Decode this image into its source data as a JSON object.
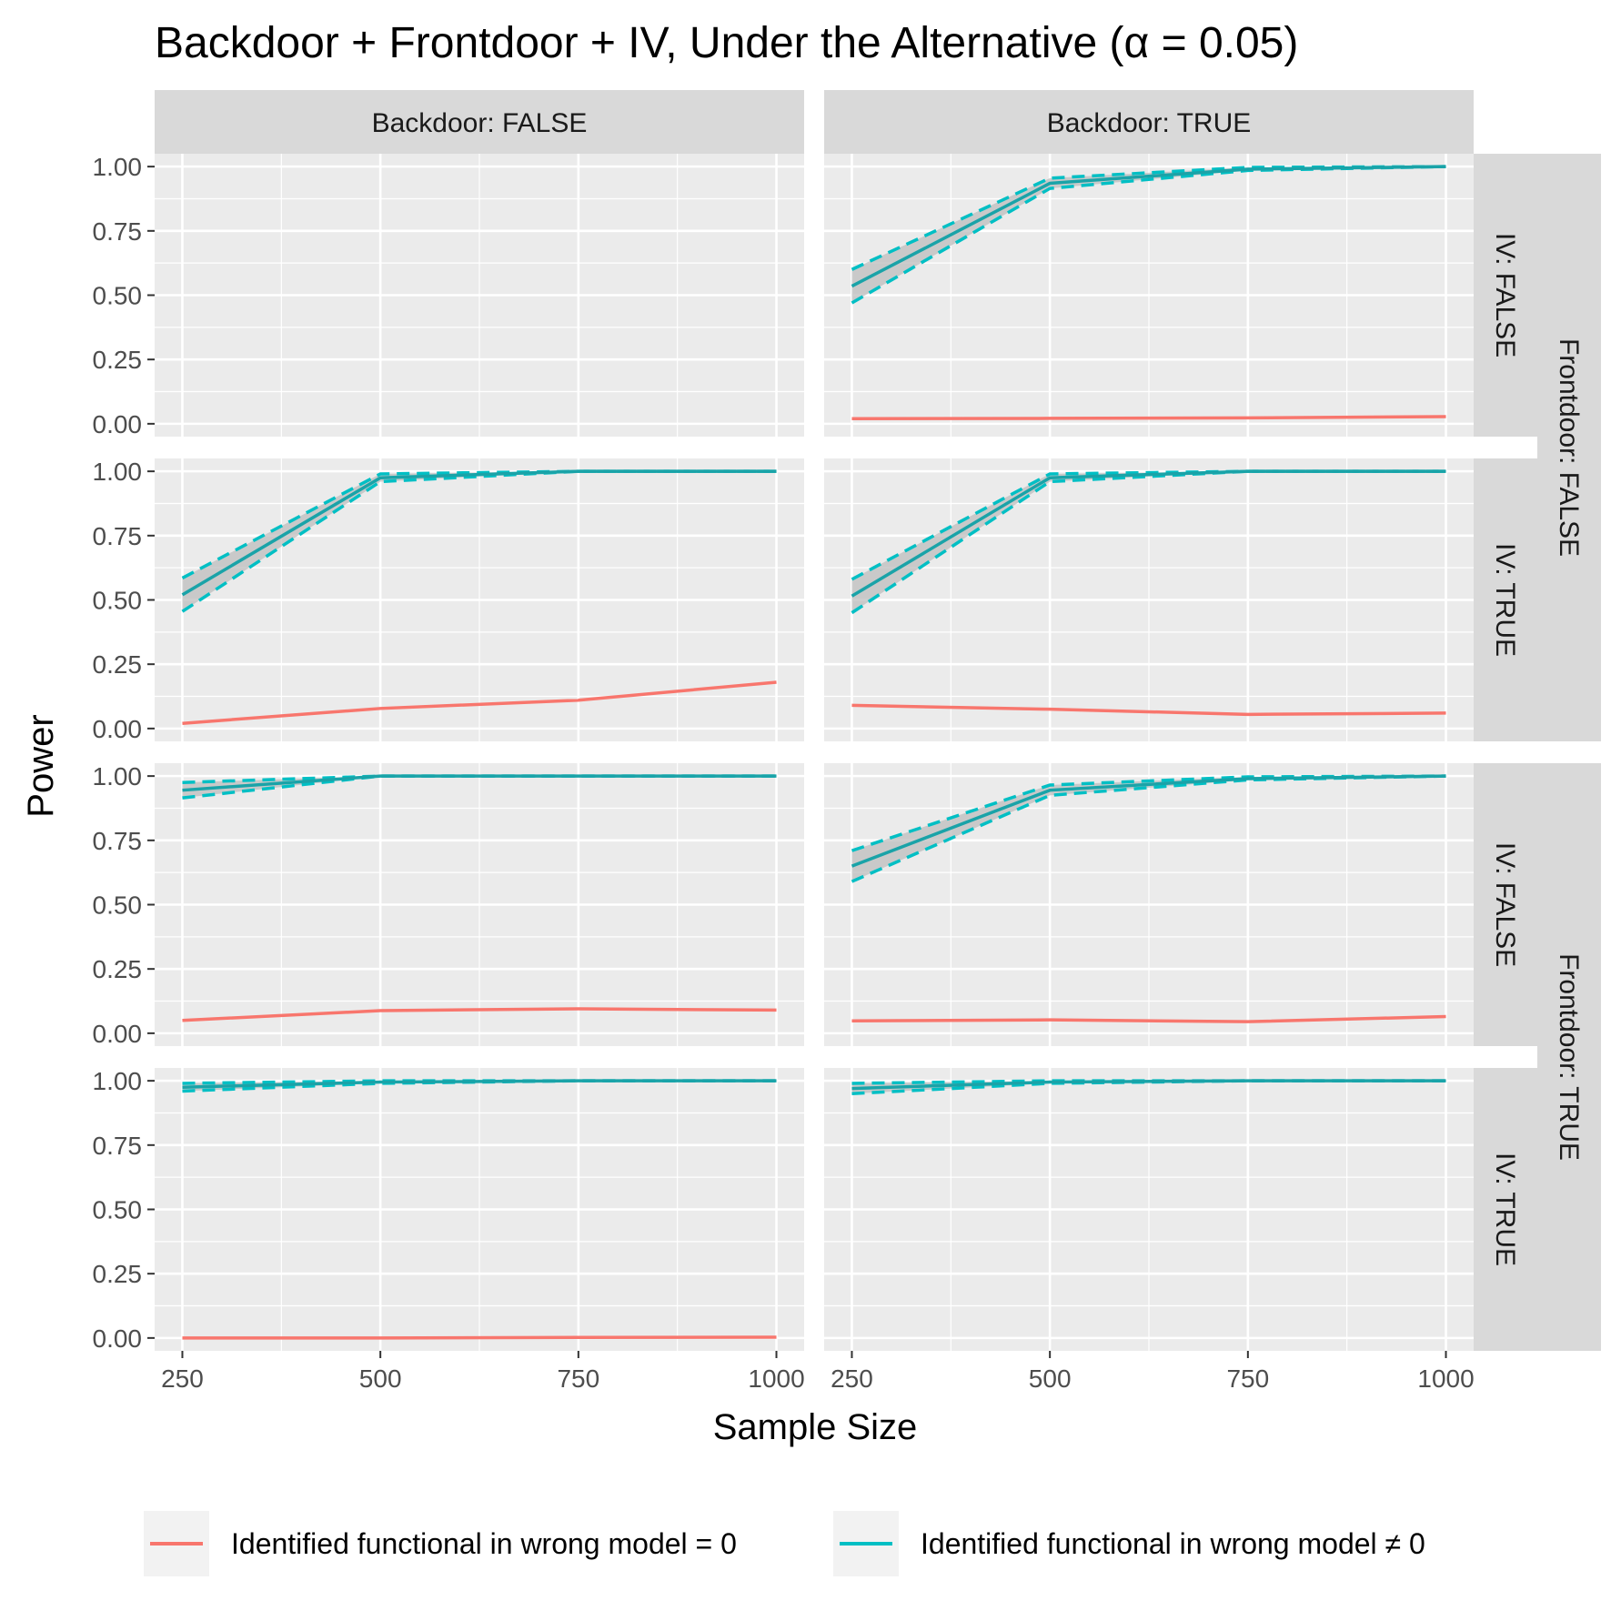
{
  "chart_data": {
    "type": "line",
    "title": "Backdoor + Frontdoor + IV, Under the Alternative (α = 0.05)",
    "xlabel": "Sample Size",
    "ylabel": "Power",
    "x": [
      250,
      500,
      750,
      1000
    ],
    "x_ticks": [
      "250",
      "500",
      "750",
      "1000"
    ],
    "y_ticks": [
      "0.00",
      "0.25",
      "0.50",
      "0.75",
      "1.00"
    ],
    "xlim": [
      215,
      1035
    ],
    "ylim": [
      -0.05,
      1.05
    ],
    "grid": true,
    "legend_position": "bottom",
    "colors": {
      "zero": "#F8766D",
      "nonzero": "#00BFC4",
      "ribbon": "#bdbdbd",
      "panel": "#ebebeb",
      "strip": "#d9d9d9"
    },
    "column_strips": [
      "Backdoor: FALSE",
      "Backdoor: TRUE"
    ],
    "row_strips_inner": [
      "IV: FALSE",
      "IV: TRUE",
      "IV: FALSE",
      "IV: TRUE"
    ],
    "row_strips_outer": [
      "Frontdoor: FALSE",
      "Frontdoor: TRUE"
    ],
    "legend": [
      {
        "key": "zero",
        "label": "Identified functional in wrong model = 0"
      },
      {
        "key": "nonzero",
        "label": "Identified functional in wrong model ≠ 0"
      }
    ],
    "panels": [
      {
        "row": 0,
        "col": 0,
        "zero": null,
        "nonzero": null
      },
      {
        "row": 0,
        "col": 1,
        "zero": [
          0.02,
          0.021,
          0.023,
          0.028
        ],
        "nonzero": {
          "mean": [
            0.535,
            0.935,
            0.99,
            1.0
          ],
          "lower": [
            0.47,
            0.915,
            0.985,
            1.0
          ],
          "upper": [
            0.6,
            0.955,
            0.997,
            1.0
          ]
        }
      },
      {
        "row": 1,
        "col": 0,
        "zero": [
          0.02,
          0.078,
          0.11,
          0.18
        ],
        "nonzero": {
          "mean": [
            0.52,
            0.975,
            1.0,
            1.0
          ],
          "lower": [
            0.455,
            0.96,
            1.0,
            1.0
          ],
          "upper": [
            0.585,
            0.99,
            1.0,
            1.0
          ]
        }
      },
      {
        "row": 1,
        "col": 1,
        "zero": [
          0.09,
          0.075,
          0.055,
          0.06
        ],
        "nonzero": {
          "mean": [
            0.515,
            0.975,
            1.0,
            1.0
          ],
          "lower": [
            0.45,
            0.96,
            1.0,
            1.0
          ],
          "upper": [
            0.58,
            0.99,
            1.0,
            1.0
          ]
        }
      },
      {
        "row": 2,
        "col": 0,
        "zero": [
          0.05,
          0.088,
          0.095,
          0.09
        ],
        "nonzero": {
          "mean": [
            0.945,
            1.0,
            1.0,
            1.0
          ],
          "lower": [
            0.915,
            1.0,
            1.0,
            1.0
          ],
          "upper": [
            0.975,
            1.0,
            1.0,
            1.0
          ]
        }
      },
      {
        "row": 2,
        "col": 1,
        "zero": [
          0.048,
          0.052,
          0.045,
          0.065
        ],
        "nonzero": {
          "mean": [
            0.65,
            0.945,
            0.99,
            1.0
          ],
          "lower": [
            0.59,
            0.925,
            0.985,
            1.0
          ],
          "upper": [
            0.71,
            0.965,
            0.997,
            1.0
          ]
        }
      },
      {
        "row": 3,
        "col": 0,
        "zero": [
          0.0,
          0.0,
          0.002,
          0.003
        ],
        "nonzero": {
          "mean": [
            0.975,
            0.995,
            1.0,
            1.0
          ],
          "lower": [
            0.96,
            0.99,
            1.0,
            1.0
          ],
          "upper": [
            0.99,
            1.0,
            1.0,
            1.0
          ]
        }
      },
      {
        "row": 3,
        "col": 1,
        "zero": null,
        "nonzero": {
          "mean": [
            0.97,
            0.995,
            1.0,
            1.0
          ],
          "lower": [
            0.95,
            0.99,
            1.0,
            1.0
          ],
          "upper": [
            0.99,
            1.0,
            1.0,
            1.0
          ]
        }
      }
    ]
  }
}
